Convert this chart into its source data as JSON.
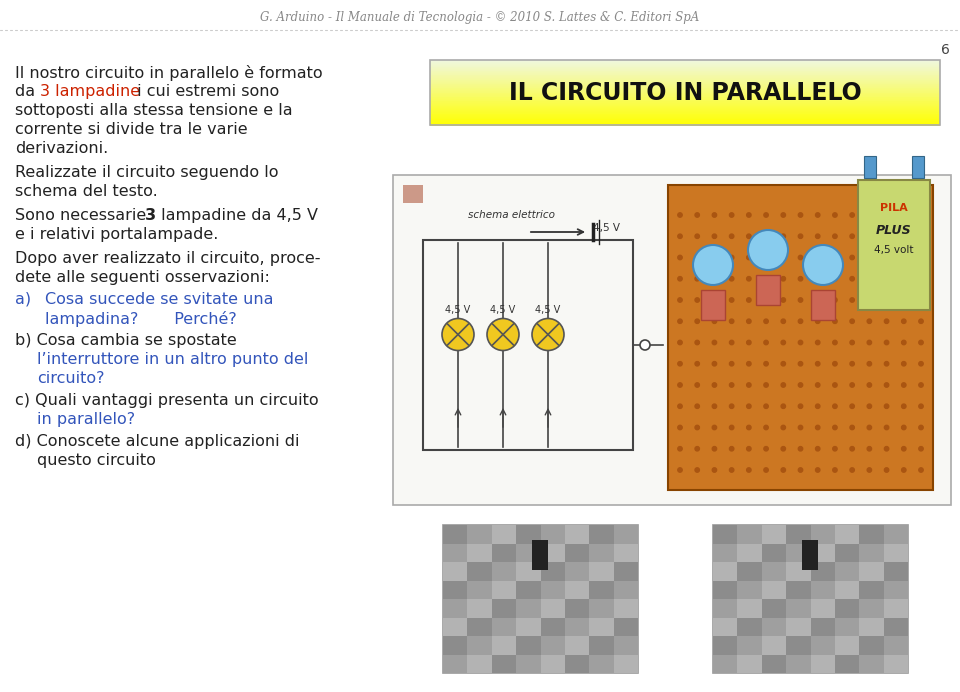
{
  "header_text": "G. Arduino - Il Manuale di Tecnologia - © 2010 S. Lattes & C. Editori SpA",
  "header_color": "#888888",
  "page_number": "6",
  "bg_color": "#ffffff",
  "title_box_text": "IL CIRCUITO IN PARALLELO",
  "title_box_border": "#aaaaaa",
  "left_para_color": "#222222",
  "red_color": "#cc2200",
  "blue_color": "#3355bb",
  "circuit_box_bg": "#f8f8f5",
  "circuit_box_border": "#999999",
  "small_sq_color": "#cc9988",
  "lamp_color": "#f0c820",
  "lamp_border": "#555555",
  "schema_label": "schema elettrico",
  "voltage_label": "4,5 V",
  "lamp_labels": [
    "4,5 V",
    "4,5 V",
    "4,5 V"
  ],
  "pila_bg": "#c8d870",
  "pila_text1": "PILA",
  "pila_text2": "PLUS",
  "pila_text3": "4,5 volt",
  "pila_text1_color": "#cc3300",
  "pila_text2_color": "#222222",
  "pila_text3_color": "#222222",
  "board_color": "#cc7722",
  "board_dot_color": "#aa5511",
  "bulb_color": "#88ccee",
  "bulb_border": "#4488bb",
  "photo_bg": "#b8b8b8",
  "photo_border": "#999999"
}
